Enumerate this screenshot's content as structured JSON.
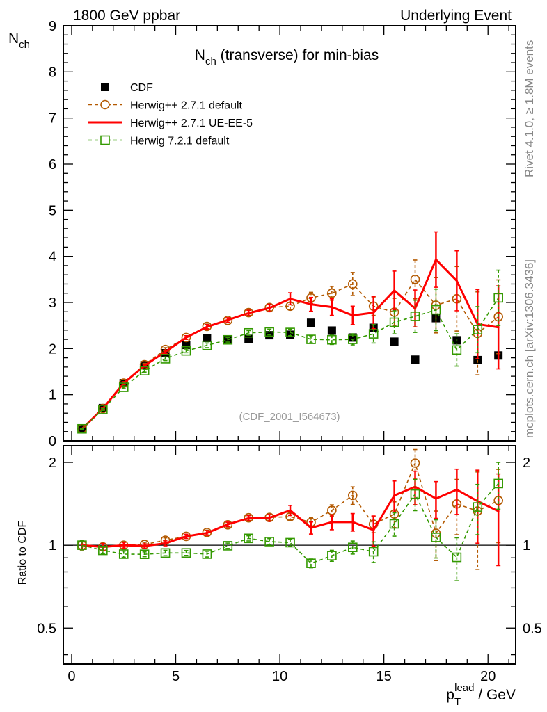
{
  "header": {
    "left": "1800 GeV ppbar",
    "right": "Underlying Event"
  },
  "side_texts": {
    "rivet": "Rivet 4.1.0, ≥ 1.8M events",
    "mcplots": "mcplots.cern.ch [arXiv:1306.3436]"
  },
  "watermark": "(CDF_2001_I564673)",
  "chart_data": [
    {
      "type": "line",
      "title": "N_ch (transverse) for min-bias",
      "title_main": "N",
      "title_sub": "ch",
      "title_rest": " (transverse) for min-bias",
      "ylabel_main": "N",
      "ylabel_sub": "ch",
      "xlim": [
        -0.4,
        21.33
      ],
      "ylim": [
        0,
        9
      ],
      "yticks": [
        0,
        1,
        2,
        3,
        4,
        5,
        6,
        7,
        8,
        9
      ],
      "legend_position": "top-left",
      "x": [
        0.5,
        1.5,
        2.5,
        3.5,
        4.5,
        5.5,
        6.5,
        7.5,
        8.5,
        9.5,
        10.5,
        11.5,
        12.5,
        13.5,
        14.5,
        15.5,
        16.5,
        17.5,
        18.5,
        19.5,
        20.5
      ],
      "series": [
        {
          "name": "CDF",
          "color": "#000000",
          "style": "marker-square",
          "values": [
            0.26,
            0.71,
            1.25,
            1.64,
            1.9,
            2.08,
            2.23,
            2.2,
            2.21,
            2.29,
            2.3,
            2.56,
            2.39,
            2.24,
            2.45,
            2.15,
            1.76,
            2.66,
            2.18,
            1.75,
            1.85
          ]
        },
        {
          "name": "Herwig++ 2.7.1 default",
          "color": "#b35900",
          "style": "dashed-circle",
          "values": [
            0.26,
            0.7,
            1.25,
            1.65,
            1.98,
            2.24,
            2.48,
            2.61,
            2.78,
            2.89,
            2.92,
            3.1,
            3.2,
            3.4,
            2.92,
            2.79,
            3.5,
            2.94,
            3.08,
            2.33,
            2.69
          ],
          "errors": [
            0.01,
            0.02,
            0.03,
            0.03,
            0.04,
            0.04,
            0.05,
            0.05,
            0.06,
            0.07,
            0.08,
            0.12,
            0.15,
            0.25,
            0.2,
            0.3,
            0.42,
            0.6,
            0.7,
            0.9,
            0.8
          ]
        },
        {
          "name": "Herwig++ 2.7.1 UE-EE-5",
          "color": "#ff0000",
          "style": "solid",
          "values": [
            0.26,
            0.7,
            1.25,
            1.63,
            1.93,
            2.24,
            2.47,
            2.62,
            2.77,
            2.88,
            3.08,
            2.96,
            2.9,
            2.72,
            2.78,
            3.26,
            2.87,
            3.93,
            3.47,
            2.53,
            2.46
          ],
          "errors": [
            0.01,
            0.02,
            0.03,
            0.03,
            0.04,
            0.04,
            0.05,
            0.05,
            0.06,
            0.08,
            0.13,
            0.15,
            0.18,
            0.2,
            0.35,
            0.42,
            0.4,
            0.6,
            0.65,
            0.75,
            0.9
          ]
        },
        {
          "name": "Herwig 7.2.1 default",
          "color": "#339900",
          "style": "dashed-square",
          "values": [
            0.26,
            0.68,
            1.16,
            1.52,
            1.78,
            1.95,
            2.07,
            2.19,
            2.34,
            2.36,
            2.35,
            2.2,
            2.19,
            2.2,
            2.32,
            2.57,
            2.7,
            2.84,
            1.97,
            2.41,
            3.1
          ],
          "errors": [
            0.01,
            0.02,
            0.03,
            0.03,
            0.04,
            0.04,
            0.05,
            0.05,
            0.05,
            0.06,
            0.07,
            0.08,
            0.1,
            0.12,
            0.2,
            0.25,
            0.35,
            0.45,
            0.35,
            0.5,
            0.6
          ]
        }
      ]
    },
    {
      "type": "line",
      "title": "Ratio to CDF",
      "ylabel": "Ratio to CDF",
      "xlabel_main": "p",
      "xlabel_sub": "T",
      "xlabel_sup": "lead",
      "xlabel_rest": " / GeV",
      "yscale": "log",
      "ylim": [
        0.37,
        2.3
      ],
      "yticks": [
        0.5,
        1,
        2
      ],
      "ytick_labels": [
        "0.5",
        "1",
        "2"
      ],
      "xticks": [
        0,
        5,
        10,
        15,
        20
      ],
      "xtick_labels": [
        "0",
        "5",
        "10",
        "15",
        "20"
      ],
      "reference": 1
    }
  ]
}
